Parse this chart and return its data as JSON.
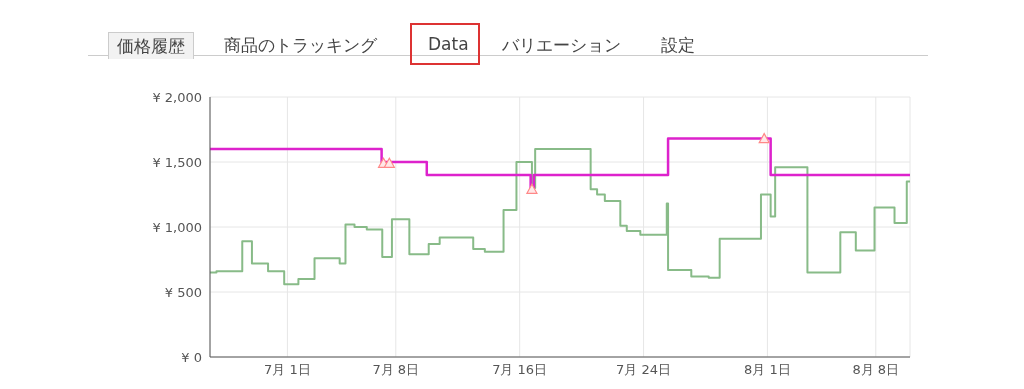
{
  "chart_data": {
    "type": "step",
    "annotations": [
      "価格履歴",
      "商品のトラッキング",
      "Data",
      "バリエーション",
      "設定"
    ],
    "xlim": [
      "--06-26T00:00",
      "--08-10T05:00"
    ],
    "xticks": [
      {
        "value": "--07-01",
        "label": "7月 1日"
      },
      {
        "value": "--07-08",
        "label": "7月 8日"
      },
      {
        "value": "--07-16",
        "label": "7月 16日"
      },
      {
        "value": "--07-24",
        "label": "7月 24日"
      },
      {
        "value": "--08-01",
        "label": "8月 1日"
      },
      {
        "value": "--08-08",
        "label": "8月 8日"
      }
    ],
    "ylim": [
      0,
      2000
    ],
    "yticks": [
      {
        "value": 0,
        "label": "¥ 0"
      },
      {
        "value": 500,
        "label": "¥ 500"
      },
      {
        "value": 1000,
        "label": "¥ 1,000"
      },
      {
        "value": 1500,
        "label": "¥ 1,500"
      },
      {
        "value": 2000,
        "label": "¥ 2,000"
      }
    ],
    "grid": true,
    "line_style": "solid",
    "marker": "none",
    "series": [
      {
        "color": "#88bb88",
        "x": [
          "--06-26T00:00",
          "--06-26T10:00",
          "--06-28T02:00",
          "--06-28T17:00",
          "--06-29T18:00",
          "--06-30T19:00",
          "--07-01T17:00",
          "--07-02T18:00",
          "--07-04T09:00",
          "--07-04T18:00",
          "--07-05T08:00",
          "--07-06T03:00",
          "--07-07T03:00",
          "--07-07T18:00",
          "--07-08T21:00",
          "--07-10T03:00",
          "--07-10T20:00",
          "--07-13T00:00",
          "--07-13T18:00",
          "--07-14T23:00",
          "--07-15T19:00",
          "--07-16T19:00",
          "--07-17T00:00",
          "--07-20T14:00",
          "--07-21T00:00",
          "--07-21T12:00",
          "--07-22T12:00",
          "--07-22T22:00",
          "--07-23T19:00",
          "--07-25T12:00",
          "--07-25T14:00",
          "--07-27T02:00",
          "--07-28T05:00",
          "--07-28T22:00",
          "--07-31T14:00",
          "--08-01T05:00",
          "--08-01T12:00",
          "--08-03T14:00",
          "--08-05T17:00",
          "--08-06T17:00",
          "--08-07T22:00",
          "--08-09T05:00",
          "--08-10T00:00",
          "--08-10T05:00"
        ],
        "values": [
          650,
          660,
          890,
          720,
          660,
          560,
          600,
          760,
          720,
          1020,
          1000,
          980,
          770,
          1060,
          790,
          870,
          920,
          830,
          810,
          1130,
          1500,
          1300,
          1600,
          1290,
          1250,
          1200,
          1010,
          970,
          940,
          1180,
          670,
          620,
          610,
          910,
          1250,
          1080,
          1460,
          650,
          960,
          820,
          1150,
          1030,
          1350,
          1350
        ]
      },
      {
        "color": "#dd22cc",
        "x": [
          "--06-26T00:00",
          "--07-07T02:00",
          "--07-10T00:00",
          "--07-16T17:00",
          "--07-16T22:00",
          "--07-25T14:00",
          "--08-01T05:00",
          "--08-10T05:00"
        ],
        "values": [
          1600,
          1500,
          1400,
          1300,
          1400,
          1680,
          1400,
          1400
        ]
      },
      {
        "type": "scatter",
        "marker": "triangle",
        "color": "#ff8888",
        "x": [
          "--07-07T05:00",
          "--07-07T14:00",
          "--07-16T19:00",
          "--07-31T19:00"
        ],
        "values": [
          1490,
          1490,
          1290,
          1680
        ]
      }
    ]
  }
}
